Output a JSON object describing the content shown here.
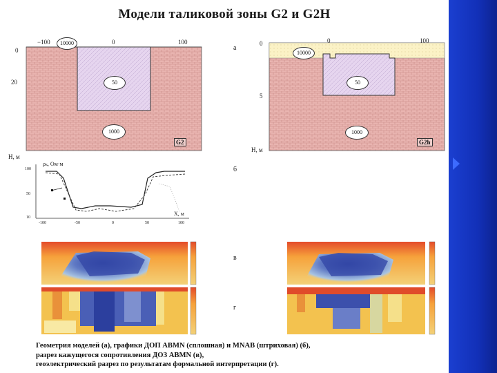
{
  "title": "Модели таликовой зоны G2 и G2H",
  "models": {
    "g2": {
      "name": "G2",
      "top_ticks": [
        "−100",
        "0",
        "100"
      ],
      "depth_ticks": [
        "0",
        "20"
      ],
      "axis_label": "H, м",
      "resistivities": [
        "10000",
        "50",
        "1000"
      ]
    },
    "g2h": {
      "name": "G2h",
      "top_ticks": [
        "0",
        "100"
      ],
      "depth_ticks": [
        "0",
        "5"
      ],
      "axis_label": "H, м",
      "resistivities": [
        "10000",
        "50",
        "1000"
      ]
    }
  },
  "panel_letters": {
    "a": "а",
    "b": "б",
    "v": "в",
    "g": "г"
  },
  "graph": {
    "ylabel": "ρₖ, Ом·м",
    "xlabel": "X, м",
    "y_ticks": [
      "100",
      "50",
      "10"
    ],
    "x_ticks": [
      "-100",
      "-50",
      "0",
      "50",
      "100"
    ]
  },
  "caption": {
    "line1": "Геометрия моделей (а), графики ДОП ABMN (сплошная) и MNAB (штриховая) (б),",
    "line2": "разрез кажущегося сопротивления ДОЗ ABMN (в),",
    "line3": "геоэлектрический разрез по результатам формальной интерпретации (г)."
  },
  "colors": {
    "soil": "#e9b4b0",
    "frozen_top": "#fbf2c6",
    "talik": "#e6d5ef",
    "sidebar": "#1432c0"
  }
}
